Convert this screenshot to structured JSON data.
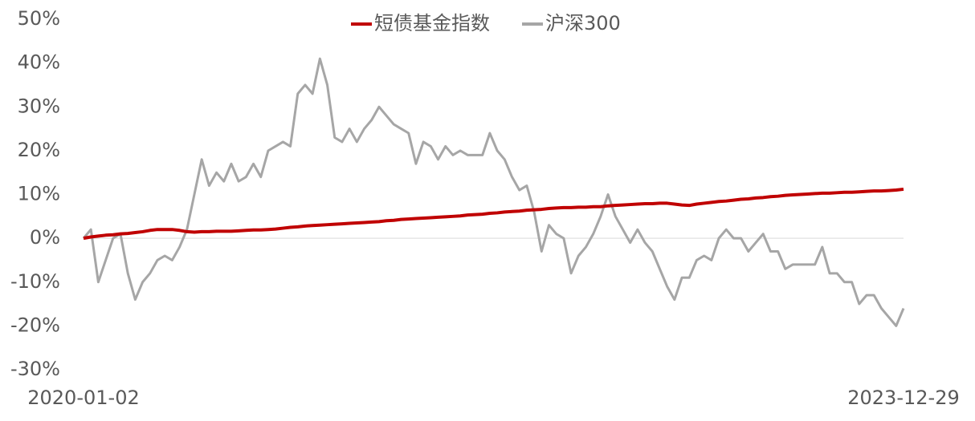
{
  "chart_data": {
    "type": "line",
    "categories": [
      "2020-01-02",
      null,
      null,
      null,
      null,
      null,
      null,
      null,
      null,
      null,
      null,
      null,
      null,
      null,
      null,
      null,
      null,
      null,
      null,
      null,
      null,
      null,
      null,
      null,
      null,
      null,
      null,
      null,
      null,
      null,
      null,
      null,
      null,
      null,
      null,
      null,
      null,
      null,
      null,
      null,
      null,
      null,
      null,
      null,
      null,
      null,
      null,
      null,
      null,
      null,
      null,
      null,
      null,
      null,
      null,
      null,
      null,
      null,
      null,
      null,
      null,
      null,
      null,
      null,
      null,
      null,
      null,
      null,
      null,
      null,
      null,
      null,
      null,
      null,
      null,
      null,
      null,
      null,
      null,
      null,
      null,
      null,
      null,
      null,
      null,
      null,
      null,
      null,
      null,
      null,
      null,
      null,
      null,
      null,
      null,
      null,
      null,
      null,
      null,
      null,
      null,
      null,
      null,
      null,
      null,
      null,
      null,
      null,
      null,
      null,
      null,
      "2023-12-29"
    ],
    "series": [
      {
        "name": "短债基金指数",
        "color": "#c00000",
        "values": [
          0,
          0.3,
          0.5,
          0.7,
          0.8,
          1,
          1.1,
          1.3,
          1.5,
          1.8,
          2,
          2,
          2,
          1.8,
          1.5,
          1.4,
          1.5,
          1.5,
          1.6,
          1.6,
          1.6,
          1.7,
          1.8,
          1.9,
          1.9,
          2,
          2.1,
          2.3,
          2.5,
          2.6,
          2.8,
          2.9,
          3,
          3.1,
          3.2,
          3.3,
          3.4,
          3.5,
          3.6,
          3.7,
          3.8,
          4,
          4.1,
          4.3,
          4.4,
          4.5,
          4.6,
          4.7,
          4.8,
          4.9,
          5,
          5.1,
          5.3,
          5.4,
          5.5,
          5.7,
          5.8,
          6,
          6.1,
          6.2,
          6.4,
          6.5,
          6.6,
          6.8,
          6.9,
          7,
          7,
          7.1,
          7.1,
          7.2,
          7.2,
          7.4,
          7.5,
          7.6,
          7.7,
          7.8,
          7.9,
          7.9,
          8,
          8,
          7.8,
          7.6,
          7.5,
          7.8,
          8,
          8.2,
          8.4,
          8.5,
          8.7,
          8.9,
          9,
          9.2,
          9.3,
          9.5,
          9.6,
          9.8,
          9.9,
          10,
          10.1,
          10.2,
          10.3,
          10.3,
          10.4,
          10.5,
          10.5,
          10.6,
          10.7,
          10.8,
          10.8,
          10.9,
          11,
          11.2
        ]
      },
      {
        "name": "沪深300",
        "color": "#a6a6a6",
        "values": [
          0,
          2,
          -10,
          -5,
          0,
          1,
          -8,
          -14,
          -10,
          -8,
          -5,
          -4,
          -5,
          -2,
          2,
          10,
          18,
          12,
          15,
          13,
          17,
          13,
          14,
          17,
          14,
          20,
          21,
          22,
          21,
          33,
          35,
          33,
          41,
          35,
          23,
          22,
          25,
          22,
          25,
          27,
          30,
          28,
          26,
          25,
          24,
          17,
          22,
          21,
          18,
          21,
          19,
          20,
          19,
          19,
          19,
          24,
          20,
          18,
          14,
          11,
          12,
          6,
          -3,
          3,
          1,
          0,
          -8,
          -4,
          -2,
          1,
          5,
          10,
          5,
          2,
          -1,
          2,
          -1,
          -3,
          -7,
          -11,
          -14,
          -9,
          -9,
          -5,
          -4,
          -5,
          0,
          2,
          0,
          0,
          -3,
          -1,
          1,
          -3,
          -3,
          -7,
          -6,
          -6,
          -6,
          -6,
          -2,
          -8,
          -8,
          -10,
          -10,
          -15,
          -13,
          -13,
          -16,
          -18,
          -20,
          -16
        ]
      }
    ],
    "ylim": [
      -30,
      50
    ],
    "yticks": [
      {
        "value": -30,
        "label": "-30%"
      },
      {
        "value": -20,
        "label": "-20%"
      },
      {
        "value": -10,
        "label": "-10%"
      },
      {
        "value": 0,
        "label": "0%"
      },
      {
        "value": 10,
        "label": "10%"
      },
      {
        "value": 20,
        "label": "20%"
      },
      {
        "value": 30,
        "label": "30%"
      },
      {
        "value": 40,
        "label": "40%"
      },
      {
        "value": 50,
        "label": "50%"
      }
    ],
    "legend": "top"
  }
}
